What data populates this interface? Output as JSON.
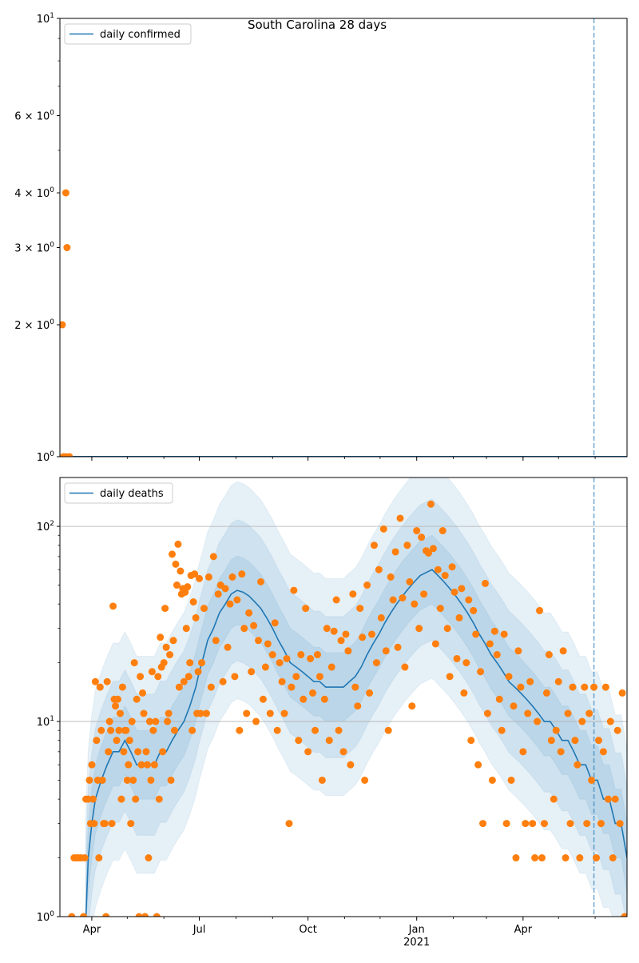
{
  "chart_data": [
    {
      "type": "scatter",
      "title": "South Carolina 28 days",
      "start_date": "2020-03-05",
      "x_unit": "days since start_date",
      "xlim": [
        0,
        480
      ],
      "yscale": "log",
      "ylim": [
        1,
        10
      ],
      "grid": false,
      "legend": {
        "position": "top-left",
        "entries": [
          "daily confirmed"
        ]
      },
      "yticks": [
        {
          "value": 1,
          "mant": "",
          "base": "10",
          "exp": "0"
        },
        {
          "value": 2,
          "mant": "2 × ",
          "base": "10",
          "exp": "0"
        },
        {
          "value": 3,
          "mant": "3 × ",
          "base": "10",
          "exp": "0"
        },
        {
          "value": 4,
          "mant": "4 × ",
          "base": "10",
          "exp": "0"
        },
        {
          "value": 6,
          "mant": "6 × ",
          "base": "10",
          "exp": "0"
        },
        {
          "value": 10,
          "mant": "",
          "base": "10",
          "exp": "1"
        }
      ],
      "minor_yticks": [
        5,
        7,
        8,
        9
      ],
      "line": {
        "name": "daily confirmed",
        "x": [
          0,
          480
        ],
        "y": [
          1,
          1
        ]
      },
      "points": [
        [
          2,
          2
        ],
        [
          5,
          4
        ],
        [
          6,
          3
        ],
        [
          3,
          1
        ],
        [
          5,
          1
        ],
        [
          8,
          1
        ]
      ],
      "vline_day": 452
    },
    {
      "type": "scatter",
      "start_date": "2020-03-05",
      "x_unit": "days since start_date",
      "xlim": [
        0,
        480
      ],
      "yscale": "log",
      "ylim": [
        1,
        178
      ],
      "grid": true,
      "legend": {
        "position": "top-left",
        "entries": [
          "daily deaths"
        ]
      },
      "yticks": [
        {
          "value": 1,
          "mant": "",
          "base": "10",
          "exp": "0"
        },
        {
          "value": 10,
          "mant": "",
          "base": "10",
          "exp": "1"
        },
        {
          "value": 100,
          "mant": "",
          "base": "10",
          "exp": "2"
        }
      ],
      "xticks": [
        {
          "day": 27,
          "label": "Apr",
          "sub": ""
        },
        {
          "day": 118,
          "label": "Jul",
          "sub": ""
        },
        {
          "day": 210,
          "label": "Oct",
          "sub": ""
        },
        {
          "day": 302,
          "label": "Jan",
          "sub": "2021"
        },
        {
          "day": 392,
          "label": "Apr",
          "sub": ""
        }
      ],
      "minor_xticks": [
        57,
        88,
        149,
        180,
        241,
        271,
        333,
        361,
        422,
        453
      ],
      "band_factors": [
        1.5,
        2.3,
        3.6
      ],
      "smoothed": {
        "name": "daily deaths",
        "x": [
          22,
          24,
          27,
          30,
          35,
          40,
          45,
          50,
          55,
          60,
          65,
          70,
          75,
          80,
          85,
          90,
          95,
          100,
          105,
          110,
          115,
          118,
          122,
          125,
          130,
          135,
          140,
          145,
          150,
          155,
          160,
          165,
          170,
          175,
          180,
          185,
          190,
          195,
          200,
          205,
          210,
          215,
          220,
          225,
          230,
          235,
          240,
          245,
          250,
          255,
          260,
          265,
          270,
          275,
          280,
          285,
          290,
          295,
          300,
          305,
          310,
          315,
          320,
          325,
          330,
          335,
          340,
          345,
          350,
          355,
          360,
          365,
          370,
          375,
          380,
          385,
          390,
          395,
          400,
          405,
          410,
          415,
          420,
          425,
          430,
          435,
          440,
          445,
          450,
          455,
          460,
          465,
          470,
          475,
          480
        ],
        "y": [
          1,
          2,
          3,
          4,
          5,
          6,
          7,
          7,
          8,
          7,
          6,
          6,
          6,
          6,
          7,
          7,
          8,
          9,
          10,
          12,
          15,
          18,
          22,
          26,
          30,
          36,
          40,
          45,
          47,
          46,
          44,
          41,
          38,
          34,
          30,
          26,
          23,
          20,
          19,
          18,
          17,
          16,
          16,
          15,
          15,
          15,
          15,
          16,
          17,
          19,
          22,
          25,
          28,
          32,
          36,
          40,
          44,
          48,
          52,
          56,
          58,
          60,
          56,
          52,
          48,
          44,
          40,
          36,
          32,
          28,
          25,
          22,
          20,
          18,
          16,
          15,
          14,
          13,
          12,
          11,
          10,
          10,
          9,
          8,
          8,
          7,
          6,
          6,
          5,
          5,
          4,
          4,
          3,
          3,
          2
        ]
      },
      "points": [
        [
          10,
          1
        ],
        [
          12,
          2
        ],
        [
          14,
          2
        ],
        [
          16,
          2
        ],
        [
          18,
          2
        ],
        [
          20,
          1
        ],
        [
          21,
          2
        ],
        [
          22,
          4
        ],
        [
          24,
          4
        ],
        [
          25,
          5
        ],
        [
          26,
          3
        ],
        [
          27,
          6
        ],
        [
          28,
          4
        ],
        [
          29,
          3
        ],
        [
          30,
          16
        ],
        [
          31,
          8
        ],
        [
          32,
          5
        ],
        [
          33,
          2
        ],
        [
          34,
          15
        ],
        [
          35,
          9
        ],
        [
          36,
          5
        ],
        [
          37,
          3
        ],
        [
          38,
          3
        ],
        [
          39,
          1
        ],
        [
          40,
          16
        ],
        [
          41,
          7
        ],
        [
          42,
          10
        ],
        [
          43,
          9
        ],
        [
          44,
          3
        ],
        [
          45,
          39
        ],
        [
          46,
          13
        ],
        [
          47,
          12
        ],
        [
          48,
          8
        ],
        [
          49,
          13
        ],
        [
          50,
          9
        ],
        [
          51,
          11
        ],
        [
          52,
          4
        ],
        [
          53,
          15
        ],
        [
          54,
          7
        ],
        [
          55,
          9
        ],
        [
          56,
          9
        ],
        [
          57,
          5
        ],
        [
          58,
          6
        ],
        [
          59,
          8
        ],
        [
          60,
          3
        ],
        [
          61,
          10
        ],
        [
          62,
          5
        ],
        [
          63,
          20
        ],
        [
          64,
          4
        ],
        [
          65,
          13
        ],
        [
          66,
          7
        ],
        [
          67,
          1
        ],
        [
          68,
          17
        ],
        [
          69,
          6
        ],
        [
          70,
          14
        ],
        [
          71,
          11
        ],
        [
          72,
          1
        ],
        [
          73,
          7
        ],
        [
          74,
          6
        ],
        [
          75,
          2
        ],
        [
          76,
          10
        ],
        [
          77,
          5
        ],
        [
          78,
          18
        ],
        [
          79,
          9
        ],
        [
          80,
          6
        ],
        [
          81,
          10
        ],
        [
          82,
          1
        ],
        [
          83,
          17
        ],
        [
          84,
          4
        ],
        [
          85,
          27
        ],
        [
          86,
          19
        ],
        [
          87,
          7
        ],
        [
          88,
          20
        ],
        [
          89,
          38
        ],
        [
          90,
          24
        ],
        [
          91,
          10
        ],
        [
          92,
          11
        ],
        [
          93,
          22
        ],
        [
          94,
          5
        ],
        [
          95,
          72
        ],
        [
          96,
          26
        ],
        [
          97,
          9
        ],
        [
          98,
          64
        ],
        [
          99,
          50
        ],
        [
          100,
          81
        ],
        [
          101,
          15
        ],
        [
          102,
          59
        ],
        [
          103,
          45
        ],
        [
          104,
          48
        ],
        [
          105,
          16
        ],
        [
          106,
          46
        ],
        [
          107,
          30
        ],
        [
          108,
          49
        ],
        [
          109,
          17
        ],
        [
          110,
          20
        ],
        [
          111,
          56
        ],
        [
          112,
          9
        ],
        [
          113,
          41
        ],
        [
          114,
          57
        ],
        [
          115,
          34
        ],
        [
          116,
          11
        ],
        [
          117,
          18
        ],
        [
          118,
          54
        ],
        [
          119,
          11
        ],
        [
          120,
          20
        ],
        [
          122,
          38
        ],
        [
          124,
          11
        ],
        [
          126,
          55
        ],
        [
          128,
          15
        ],
        [
          130,
          70
        ],
        [
          132,
          26
        ],
        [
          134,
          45
        ],
        [
          136,
          50
        ],
        [
          138,
          16
        ],
        [
          140,
          48
        ],
        [
          142,
          24
        ],
        [
          144,
          40
        ],
        [
          146,
          55
        ],
        [
          148,
          17
        ],
        [
          150,
          42
        ],
        [
          152,
          9
        ],
        [
          154,
          57
        ],
        [
          156,
          30
        ],
        [
          158,
          11
        ],
        [
          160,
          36
        ],
        [
          162,
          18
        ],
        [
          164,
          31
        ],
        [
          166,
          10
        ],
        [
          168,
          26
        ],
        [
          170,
          52
        ],
        [
          172,
          13
        ],
        [
          174,
          19
        ],
        [
          176,
          25
        ],
        [
          178,
          11
        ],
        [
          180,
          22
        ],
        [
          182,
          32
        ],
        [
          184,
          9
        ],
        [
          186,
          20
        ],
        [
          188,
          16
        ],
        [
          190,
          11
        ],
        [
          192,
          21
        ],
        [
          194,
          3
        ],
        [
          196,
          15
        ],
        [
          198,
          47
        ],
        [
          200,
          17
        ],
        [
          202,
          8
        ],
        [
          204,
          22
        ],
        [
          206,
          13
        ],
        [
          208,
          38
        ],
        [
          210,
          7
        ],
        [
          212,
          21
        ],
        [
          214,
          14
        ],
        [
          216,
          9
        ],
        [
          218,
          22
        ],
        [
          220,
          17
        ],
        [
          222,
          5
        ],
        [
          224,
          13
        ],
        [
          226,
          30
        ],
        [
          228,
          8
        ],
        [
          230,
          19
        ],
        [
          232,
          29
        ],
        [
          234,
          42
        ],
        [
          236,
          9
        ],
        [
          238,
          26
        ],
        [
          240,
          7
        ],
        [
          242,
          28
        ],
        [
          244,
          23
        ],
        [
          246,
          6
        ],
        [
          248,
          45
        ],
        [
          250,
          15
        ],
        [
          252,
          12
        ],
        [
          254,
          38
        ],
        [
          256,
          27
        ],
        [
          258,
          5
        ],
        [
          260,
          50
        ],
        [
          262,
          14
        ],
        [
          264,
          28
        ],
        [
          266,
          80
        ],
        [
          268,
          20
        ],
        [
          270,
          60
        ],
        [
          272,
          34
        ],
        [
          274,
          97
        ],
        [
          276,
          23
        ],
        [
          278,
          9
        ],
        [
          280,
          55
        ],
        [
          282,
          42
        ],
        [
          284,
          74
        ],
        [
          286,
          24
        ],
        [
          288,
          110
        ],
        [
          290,
          43
        ],
        [
          292,
          19
        ],
        [
          294,
          80
        ],
        [
          296,
          52
        ],
        [
          298,
          12
        ],
        [
          300,
          40
        ],
        [
          302,
          95
        ],
        [
          304,
          30
        ],
        [
          306,
          88
        ],
        [
          308,
          45
        ],
        [
          310,
          75
        ],
        [
          312,
          73
        ],
        [
          314,
          130
        ],
        [
          316,
          77
        ],
        [
          318,
          25
        ],
        [
          320,
          60
        ],
        [
          322,
          38
        ],
        [
          324,
          95
        ],
        [
          326,
          56
        ],
        [
          328,
          30
        ],
        [
          330,
          17
        ],
        [
          332,
          62
        ],
        [
          334,
          46
        ],
        [
          336,
          21
        ],
        [
          338,
          34
        ],
        [
          340,
          48
        ],
        [
          342,
          14
        ],
        [
          344,
          20
        ],
        [
          346,
          42
        ],
        [
          348,
          8
        ],
        [
          350,
          37
        ],
        [
          352,
          28
        ],
        [
          354,
          6
        ],
        [
          356,
          18
        ],
        [
          358,
          3
        ],
        [
          360,
          51
        ],
        [
          362,
          11
        ],
        [
          364,
          25
        ],
        [
          366,
          5
        ],
        [
          368,
          29
        ],
        [
          370,
          22
        ],
        [
          372,
          13
        ],
        [
          374,
          9
        ],
        [
          376,
          28
        ],
        [
          378,
          3
        ],
        [
          380,
          17
        ],
        [
          382,
          5
        ],
        [
          384,
          12
        ],
        [
          386,
          2
        ],
        [
          388,
          23
        ],
        [
          390,
          15
        ],
        [
          392,
          7
        ],
        [
          394,
          3
        ],
        [
          396,
          11
        ],
        [
          398,
          16
        ],
        [
          400,
          3
        ],
        [
          402,
          2
        ],
        [
          404,
          10
        ],
        [
          406,
          37
        ],
        [
          408,
          2
        ],
        [
          410,
          3
        ],
        [
          412,
          14
        ],
        [
          414,
          22
        ],
        [
          416,
          8
        ],
        [
          418,
          4
        ],
        [
          420,
          9
        ],
        [
          422,
          16
        ],
        [
          424,
          7
        ],
        [
          426,
          23
        ],
        [
          428,
          2
        ],
        [
          430,
          11
        ],
        [
          432,
          3
        ],
        [
          434,
          15
        ],
        [
          436,
          8
        ],
        [
          438,
          6
        ],
        [
          440,
          2
        ],
        [
          442,
          10
        ],
        [
          444,
          15
        ],
        [
          446,
          3
        ],
        [
          448,
          11
        ],
        [
          450,
          5
        ],
        [
          452,
          15
        ],
        [
          454,
          2
        ],
        [
          456,
          8
        ],
        [
          458,
          3
        ],
        [
          460,
          7
        ],
        [
          462,
          15
        ],
        [
          464,
          4
        ],
        [
          466,
          10
        ],
        [
          468,
          2
        ],
        [
          470,
          4
        ],
        [
          472,
          9
        ],
        [
          474,
          3
        ],
        [
          476,
          14
        ],
        [
          478,
          1
        ]
      ],
      "vline_day": 452
    }
  ],
  "colors": {
    "line": "#1f77b4",
    "points": "#ff7f0e",
    "grid": "#b0b0b0",
    "band": "#1f77b4"
  }
}
